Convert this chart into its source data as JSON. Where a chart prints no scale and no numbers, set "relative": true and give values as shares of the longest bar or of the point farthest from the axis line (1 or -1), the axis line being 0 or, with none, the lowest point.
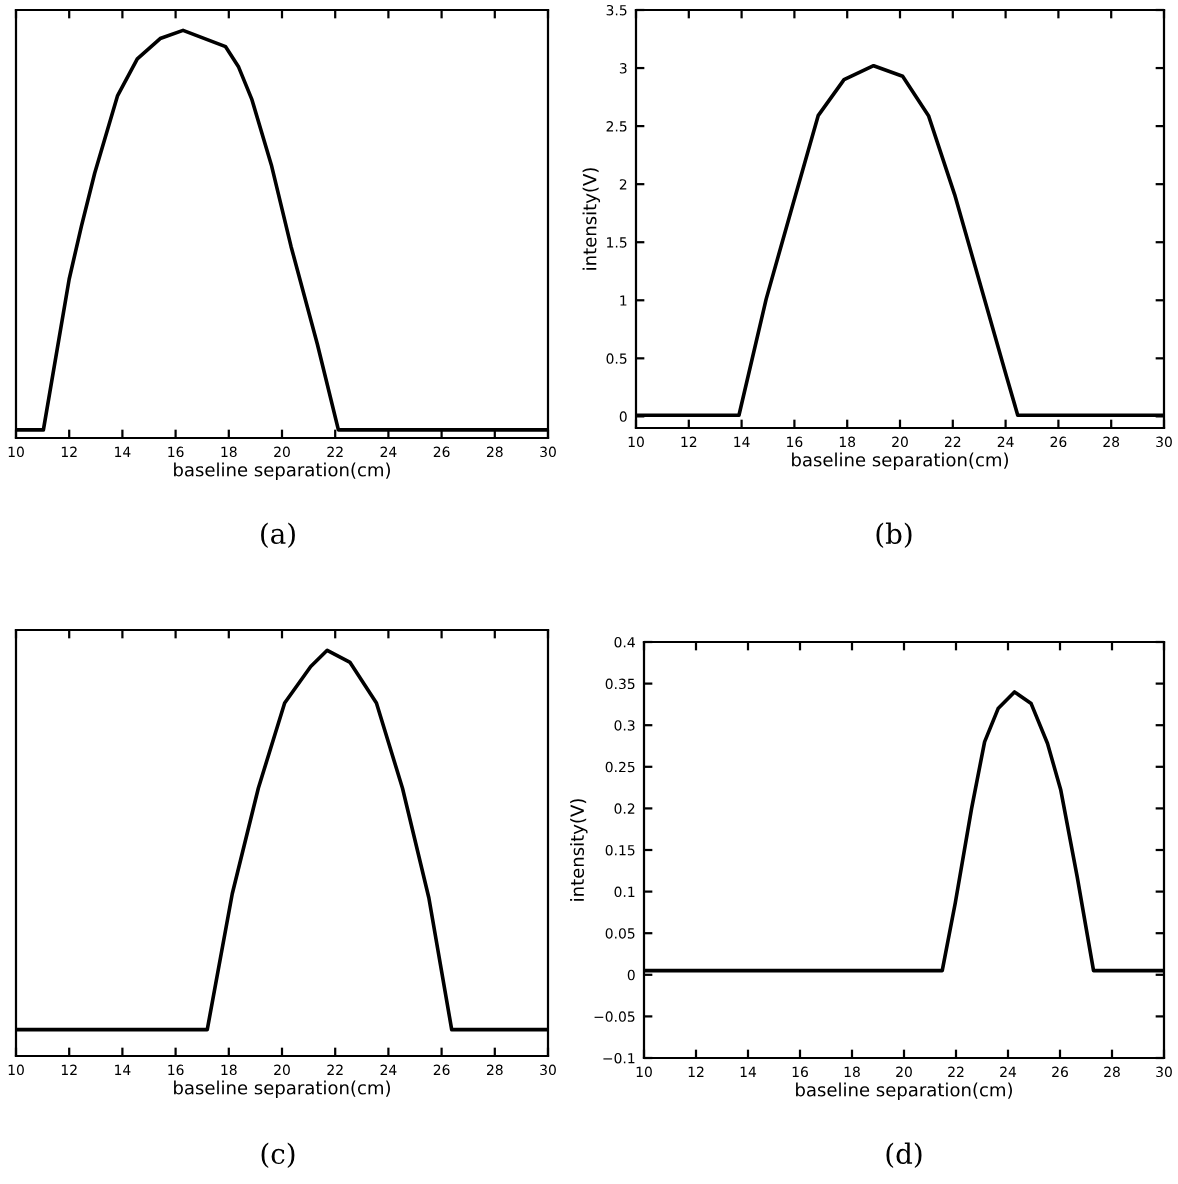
{
  "chart_data": [
    {
      "type": "line",
      "relative": true,
      "xlabel": "baseline separation(cm)",
      "annotations": [
        "(a)"
      ],
      "xlim": [
        10,
        30
      ],
      "xticks": [
        10,
        12,
        14,
        16,
        18,
        20,
        22,
        24,
        26,
        28,
        30
      ],
      "grid": false,
      "series": [
        {
          "color": "#000000",
          "x": [
            10,
            11.03,
            12.0,
            12.46,
            12.96,
            13.82,
            14.56,
            15.42,
            16.28,
            17.88,
            18.37,
            18.87,
            19.6,
            20.34,
            21.33,
            22.12,
            30
          ],
          "values": [
            0.02,
            0.02,
            0.39,
            0.52,
            0.65,
            0.84,
            0.93,
            0.98,
            1.0,
            0.96,
            0.91,
            0.83,
            0.67,
            0.47,
            0.23,
            0.02,
            0.02
          ]
        }
      ]
    },
    {
      "type": "line",
      "xlabel": "baseline separation(cm)",
      "ylabel": "intensity(V)",
      "annotations": [
        "(b)"
      ],
      "xlim": [
        10,
        30
      ],
      "xticks": [
        10,
        12,
        14,
        16,
        18,
        20,
        22,
        24,
        26,
        28,
        30
      ],
      "ylim": [
        -0.1,
        3.5
      ],
      "yticks": [
        0,
        0.5,
        1,
        1.5,
        2,
        2.5,
        3,
        3.5
      ],
      "grid": false,
      "series": [
        {
          "color": "#000000",
          "x": [
            10,
            13.9,
            14.93,
            15.91,
            16.9,
            17.88,
            19.0,
            20.1,
            21.08,
            22.07,
            23.05,
            24.04,
            24.46,
            30
          ],
          "values": [
            0.01,
            0.01,
            1.01,
            1.8,
            2.59,
            2.9,
            3.02,
            2.93,
            2.59,
            1.91,
            1.13,
            0.34,
            0.01,
            0.01
          ]
        }
      ]
    },
    {
      "type": "line",
      "relative": true,
      "xlabel": "baseline separation(cm)",
      "annotations": [
        "(c)"
      ],
      "xlim": [
        10,
        30
      ],
      "xticks": [
        10,
        12,
        14,
        16,
        18,
        20,
        22,
        24,
        26,
        28,
        30
      ],
      "grid": false,
      "series": [
        {
          "color": "#000000",
          "x": [
            10,
            17.19,
            18.13,
            19.11,
            20.1,
            21.08,
            21.7,
            22.56,
            23.55,
            24.53,
            25.52,
            26.38,
            30
          ],
          "values": [
            0.065,
            0.065,
            0.4,
            0.66,
            0.87,
            0.96,
            1.0,
            0.97,
            0.87,
            0.66,
            0.39,
            0.065,
            0.065
          ]
        }
      ]
    },
    {
      "type": "line",
      "xlabel": "baseline separation(cm)",
      "ylabel": "intensity(V)",
      "annotations": [
        "(d)"
      ],
      "xlim": [
        10,
        30
      ],
      "xticks": [
        10,
        12,
        14,
        16,
        18,
        20,
        22,
        24,
        26,
        28,
        30
      ],
      "ylim": [
        -0.1,
        0.4
      ],
      "yticks": [
        {
          "value": -0.1,
          "label": "−0.1"
        },
        {
          "value": -0.05,
          "label": "−0.05"
        },
        0,
        0.05,
        0.1,
        0.15,
        0.2,
        0.25,
        0.3,
        0.35,
        0.4
      ],
      "grid": false,
      "series": [
        {
          "color": "#000000",
          "x": [
            10,
            21.47,
            21.97,
            22.6,
            23.1,
            23.62,
            24.25,
            24.89,
            25.52,
            26.03,
            26.66,
            27.29,
            30
          ],
          "values": [
            0.005,
            0.005,
            0.086,
            0.2,
            0.28,
            0.32,
            0.34,
            0.326,
            0.278,
            0.222,
            0.118,
            0.005,
            0.005
          ]
        }
      ]
    }
  ]
}
